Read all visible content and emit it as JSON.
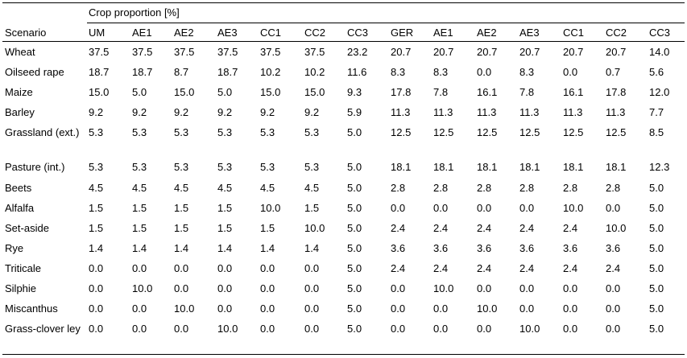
{
  "table": {
    "group_header": "Crop proportion [%]",
    "columns": [
      "Scenario",
      "UM",
      "AE1",
      "AE2",
      "AE3",
      "CC1",
      "CC2",
      "CC3",
      "GER",
      "AE1",
      "AE2",
      "AE3",
      "CC1",
      "CC2",
      "CC3"
    ],
    "rows": [
      {
        "crop": "Wheat",
        "values": [
          "37.5",
          "37.5",
          "37.5",
          "37.5",
          "37.5",
          "37.5",
          "23.2",
          "20.7",
          "20.7",
          "20.7",
          "20.7",
          "20.7",
          "20.7",
          "14.0"
        ]
      },
      {
        "crop": "Oilseed rape",
        "values": [
          "18.7",
          "18.7",
          "8.7",
          "18.7",
          "10.2",
          "10.2",
          "11.6",
          "8.3",
          "8.3",
          "0.0",
          "8.3",
          "0.0",
          "0.7",
          "5.6"
        ]
      },
      {
        "crop": "Maize",
        "values": [
          "15.0",
          "5.0",
          "15.0",
          "5.0",
          "15.0",
          "15.0",
          "9.3",
          "17.8",
          "7.8",
          "16.1",
          "7.8",
          "16.1",
          "17.8",
          "12.0"
        ]
      },
      {
        "crop": "Barley",
        "values": [
          "9.2",
          "9.2",
          "9.2",
          "9.2",
          "9.2",
          "9.2",
          "5.9",
          "11.3",
          "11.3",
          "11.3",
          "11.3",
          "11.3",
          "11.3",
          "7.7"
        ]
      },
      {
        "crop": "Grassland (ext.)",
        "values": [
          "5.3",
          "5.3",
          "5.3",
          "5.3",
          "5.3",
          "5.3",
          "5.0",
          "12.5",
          "12.5",
          "12.5",
          "12.5",
          "12.5",
          "12.5",
          "8.5"
        ]
      },
      {
        "crop": "Pasture (int.)",
        "values": [
          "5.3",
          "5.3",
          "5.3",
          "5.3",
          "5.3",
          "5.3",
          "5.0",
          "18.1",
          "18.1",
          "18.1",
          "18.1",
          "18.1",
          "18.1",
          "12.3"
        ]
      },
      {
        "crop": "Beets",
        "values": [
          "4.5",
          "4.5",
          "4.5",
          "4.5",
          "4.5",
          "4.5",
          "5.0",
          "2.8",
          "2.8",
          "2.8",
          "2.8",
          "2.8",
          "2.8",
          "5.0"
        ]
      },
      {
        "crop": "Alfalfa",
        "values": [
          "1.5",
          "1.5",
          "1.5",
          "1.5",
          "10.0",
          "1.5",
          "5.0",
          "0.0",
          "0.0",
          "0.0",
          "0.0",
          "10.0",
          "0.0",
          "5.0"
        ]
      },
      {
        "crop": "Set-aside",
        "values": [
          "1.5",
          "1.5",
          "1.5",
          "1.5",
          "1.5",
          "10.0",
          "5.0",
          "2.4",
          "2.4",
          "2.4",
          "2.4",
          "2.4",
          "10.0",
          "5.0"
        ]
      },
      {
        "crop": "Rye",
        "values": [
          "1.4",
          "1.4",
          "1.4",
          "1.4",
          "1.4",
          "1.4",
          "5.0",
          "3.6",
          "3.6",
          "3.6",
          "3.6",
          "3.6",
          "3.6",
          "5.0"
        ]
      },
      {
        "crop": "Triticale",
        "values": [
          "0.0",
          "0.0",
          "0.0",
          "0.0",
          "0.0",
          "0.0",
          "5.0",
          "2.4",
          "2.4",
          "2.4",
          "2.4",
          "2.4",
          "2.4",
          "5.0"
        ]
      },
      {
        "crop": "Silphie",
        "values": [
          "0.0",
          "10.0",
          "0.0",
          "0.0",
          "0.0",
          "0.0",
          "5.0",
          "0.0",
          "10.0",
          "0.0",
          "0.0",
          "0.0",
          "0.0",
          "5.0"
        ]
      },
      {
        "crop": "Miscanthus",
        "values": [
          "0.0",
          "0.0",
          "10.0",
          "0.0",
          "0.0",
          "0.0",
          "5.0",
          "0.0",
          "0.0",
          "10.0",
          "0.0",
          "0.0",
          "0.0",
          "5.0"
        ]
      },
      {
        "crop": "Grass-clover ley",
        "values": [
          "0.0",
          "0.0",
          "0.0",
          "10.0",
          "0.0",
          "0.0",
          "5.0",
          "0.0",
          "0.0",
          "0.0",
          "10.0",
          "0.0",
          "0.0",
          "5.0"
        ]
      }
    ]
  }
}
